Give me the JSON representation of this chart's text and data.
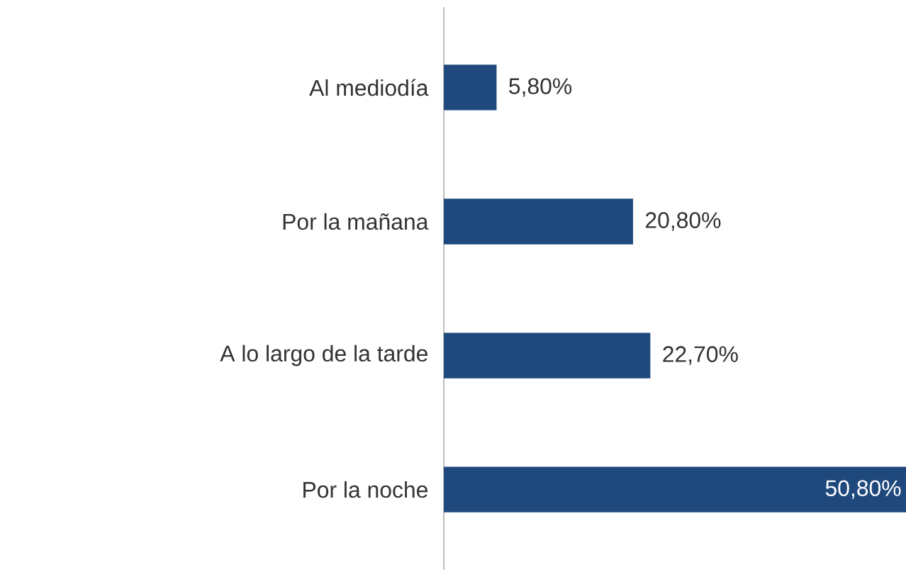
{
  "chart_data": {
    "type": "bar",
    "orientation": "horizontal",
    "categories": [
      "Al mediodía",
      "Por la mañana",
      "A lo largo de la tarde",
      "Por la noche"
    ],
    "values": [
      5.8,
      20.8,
      22.7,
      50.8
    ],
    "color": "#1f497d",
    "value_labels": [
      "5,80%",
      "20,80%",
      "22,70%",
      "50,80%"
    ]
  }
}
